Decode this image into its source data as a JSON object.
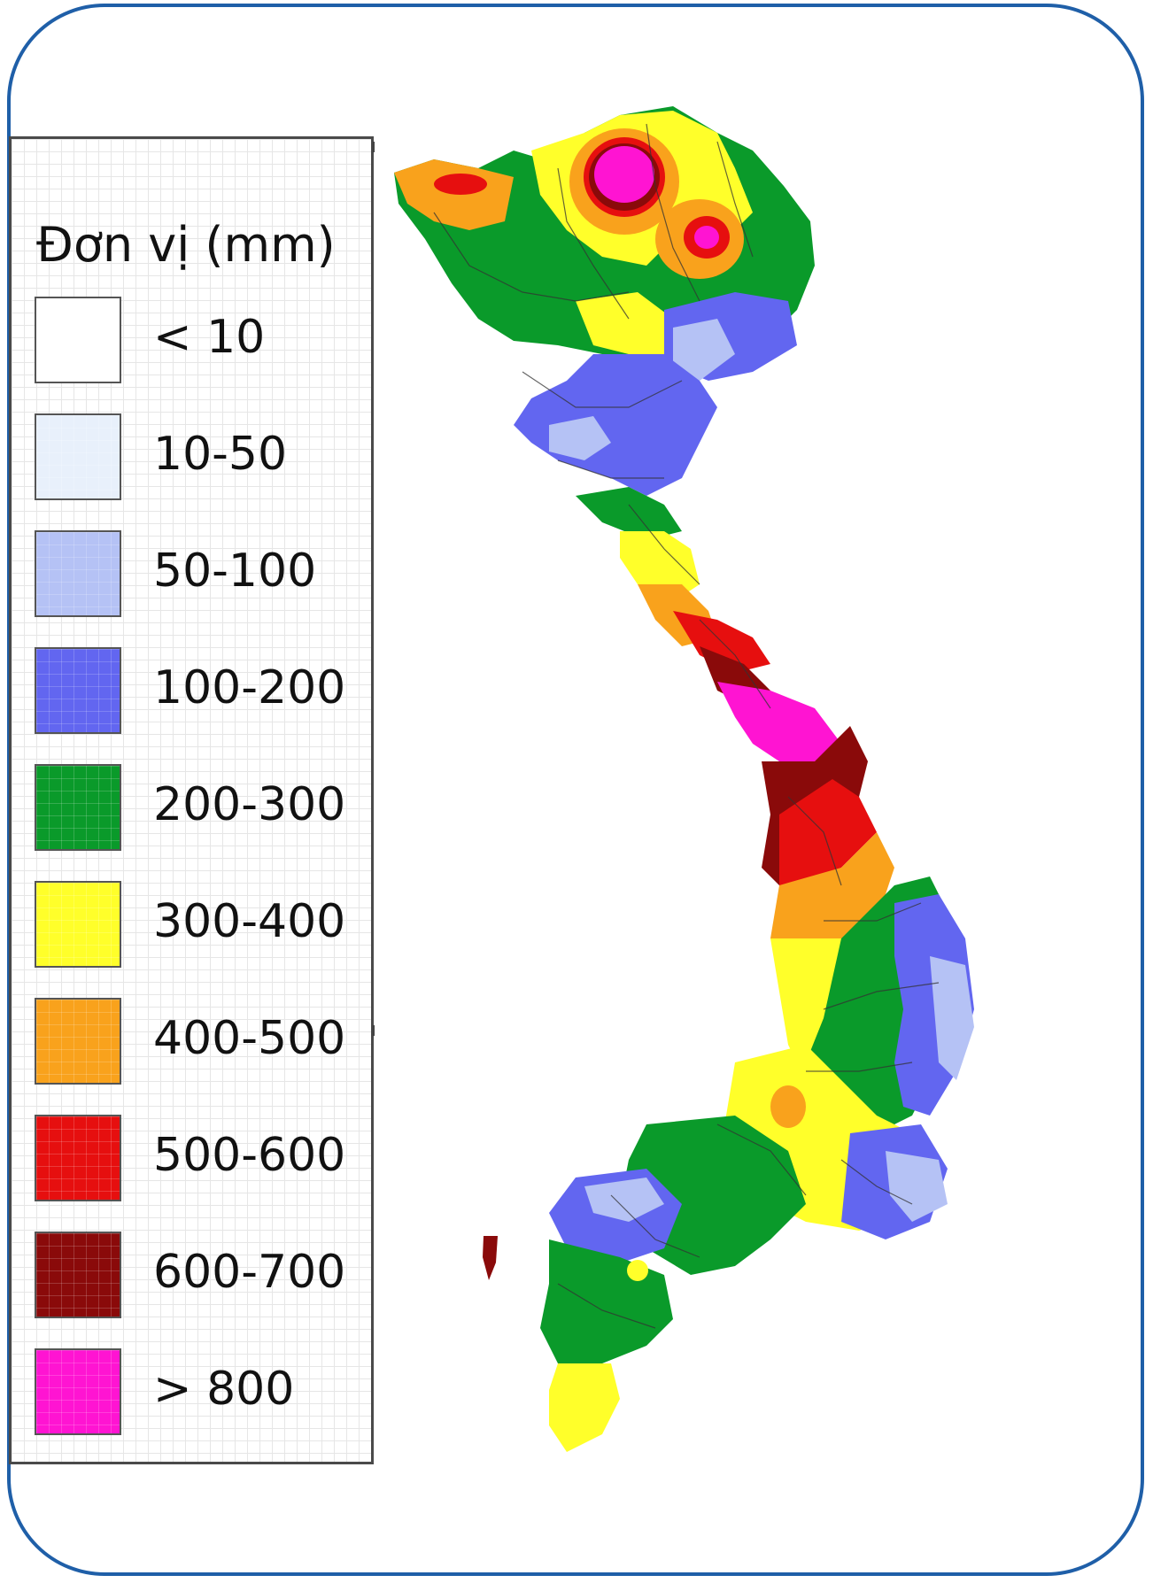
{
  "legend": {
    "title": "Đơn vị (mm)",
    "items": [
      {
        "label": "< 10",
        "color": "#ffffff"
      },
      {
        "label": "10-50",
        "color": "#e8f0fb"
      },
      {
        "label": "50-100",
        "color": "#b5c2f5"
      },
      {
        "label": "100-200",
        "color": "#6266f0"
      },
      {
        "label": "200-300",
        "color": "#0a9a2a"
      },
      {
        "label": "300-400",
        "color": "#ffff2a"
      },
      {
        "label": "400-500",
        "color": "#f9a21c"
      },
      {
        "label": "500-600",
        "color": "#e60f0f"
      },
      {
        "label": "600-700",
        "color": "#8a0a0a"
      },
      {
        "label": "> 800",
        "color": "#ff14d2"
      }
    ]
  },
  "frame_color": "#1f5fa8"
}
